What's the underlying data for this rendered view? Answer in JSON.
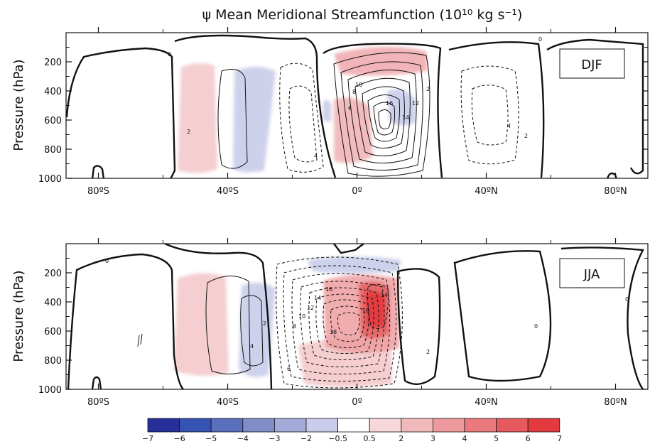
{
  "title": "ψ  Mean Meridional Streamfunction (10¹⁰ kg s⁻¹)",
  "chart_data": [
    {
      "type": "contour",
      "panel_label": "DJF",
      "ylabel": "Pressure (hPa)",
      "x_ticks": [
        "80ºS",
        "40ºS",
        "0º",
        "40ºN",
        "80ºN"
      ],
      "y_ticks": [
        "200",
        "400",
        "600",
        "800",
        "1000"
      ],
      "xlim": [
        -90,
        90
      ],
      "ylim": [
        1000,
        0
      ],
      "contour_labels": [
        "0",
        "2",
        "4",
        "6",
        "8",
        "10",
        "12",
        "14",
        "16",
        "2",
        "4",
        "2",
        "0"
      ]
    },
    {
      "type": "contour",
      "panel_label": "JJA",
      "ylabel": "Pressure (hPa)",
      "x_ticks": [
        "80ºS",
        "40ºS",
        "0º",
        "40ºN",
        "80ºN"
      ],
      "y_ticks": [
        "200",
        "400",
        "600",
        "800",
        "1000"
      ],
      "xlim": [
        -90,
        90
      ],
      "ylim": [
        1000,
        0
      ],
      "contour_labels": [
        "0",
        "2",
        "4",
        "6",
        "8",
        "10",
        "12",
        "14",
        "16",
        "18",
        "16",
        "14",
        "2",
        "0",
        "0"
      ]
    }
  ],
  "colorbar": {
    "labels": [
      "−7",
      "−6",
      "−5",
      "−4",
      "−3",
      "−2",
      "−0.5",
      "0.5",
      "2",
      "3",
      "4",
      "5",
      "6",
      "7"
    ],
    "colors": [
      "#262f9a",
      "#3553b3",
      "#5a70be",
      "#7f8dc9",
      "#a4abd8",
      "#c9ccea",
      "#ffffff",
      "#f6d8da",
      "#f2b9bb",
      "#ee9a9c",
      "#ea7a7d",
      "#e65a5e",
      "#e23a3e"
    ]
  }
}
